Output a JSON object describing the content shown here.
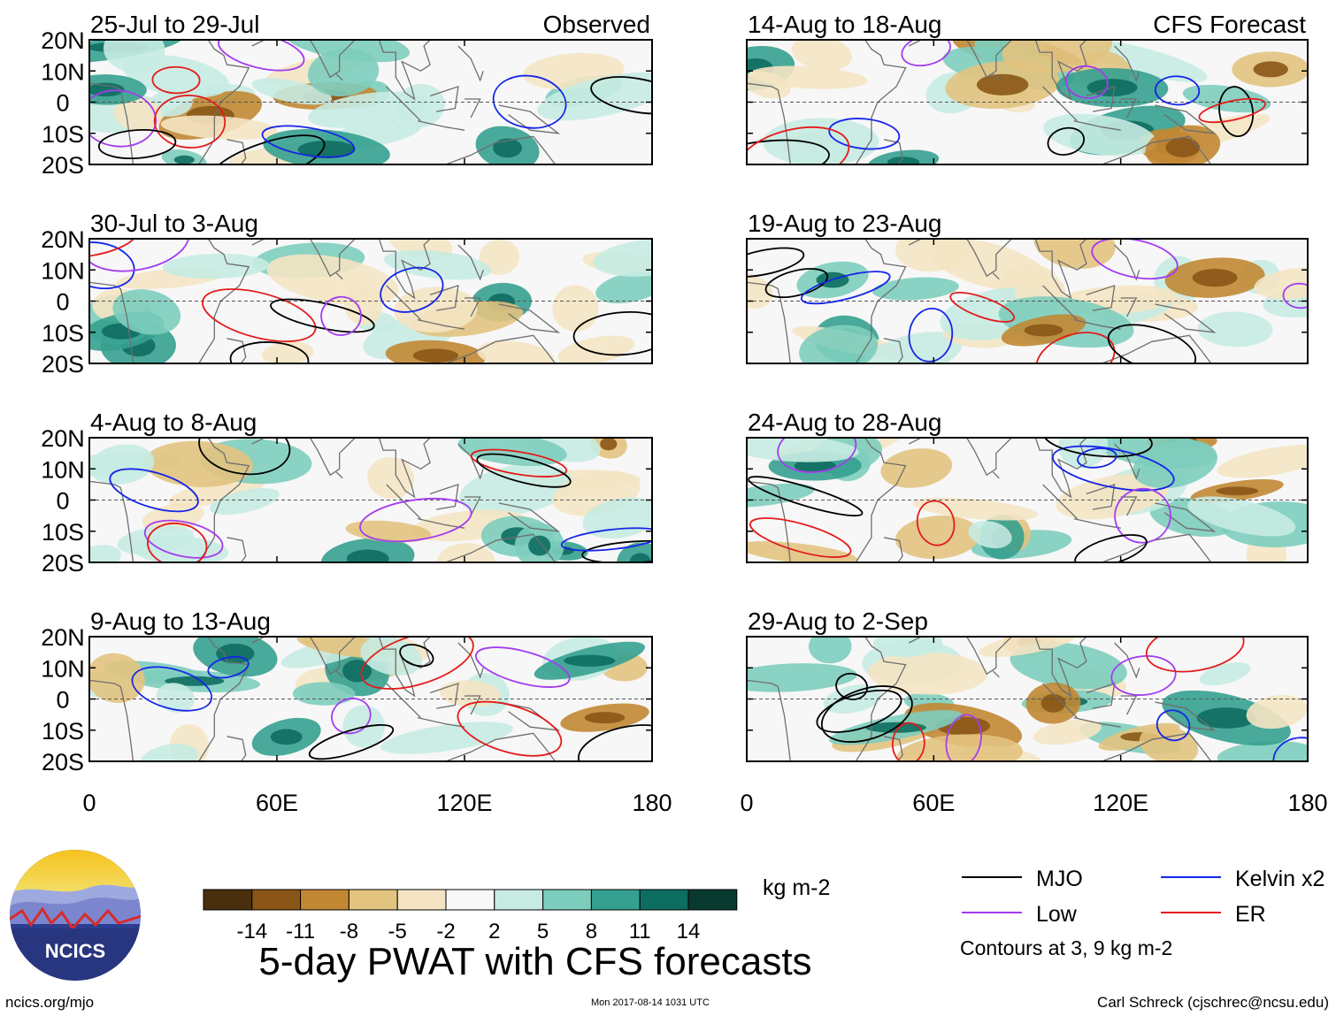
{
  "chart_data": {
    "type": "heatmap",
    "title": "5-day PWAT with CFS forecasts",
    "panel_groups": {
      "observed_label": "Observed",
      "forecast_label": "CFS Forecast"
    },
    "x_axis": {
      "range": [
        0,
        180
      ],
      "ticks": [
        0,
        60,
        120,
        180
      ],
      "tick_labels": [
        "0",
        "60E",
        "120E",
        "180"
      ]
    },
    "y_axis": {
      "range": [
        -20,
        20
      ],
      "ticks": [
        20,
        10,
        0,
        -10,
        -20
      ],
      "tick_labels": [
        "20N",
        "10N",
        "0",
        "10S",
        "20S"
      ]
    },
    "panels": [
      {
        "group": "Observed",
        "period": "25-Jul to 29-Jul"
      },
      {
        "group": "Observed",
        "period": "30-Jul to 3-Aug"
      },
      {
        "group": "Observed",
        "period": "4-Aug to 8-Aug"
      },
      {
        "group": "Observed",
        "period": "9-Aug to 13-Aug"
      },
      {
        "group": "CFS Forecast",
        "period": "14-Aug to 18-Aug"
      },
      {
        "group": "CFS Forecast",
        "period": "19-Aug to 23-Aug"
      },
      {
        "group": "CFS Forecast",
        "period": "24-Aug to 28-Aug"
      },
      {
        "group": "CFS Forecast",
        "period": "29-Aug to 2-Sep"
      }
    ],
    "colorbar": {
      "units": "kg m-2",
      "levels": [
        "-14",
        "-11",
        "-8",
        "-5",
        "-2",
        "2",
        "5",
        "8",
        "11",
        "14"
      ],
      "colors": [
        "#4a2f0f",
        "#8a5617",
        "#c18733",
        "#e2c380",
        "#f4e4c3",
        "#f8f8f8",
        "#c7ebe2",
        "#7dcdbd",
        "#35a08f",
        "#0e6d61",
        "#08392f"
      ]
    },
    "legend": {
      "entries": [
        {
          "name": "MJO",
          "color": "#000000"
        },
        {
          "name": "Kelvin x2",
          "color": "#1525e8"
        },
        {
          "name": "Low",
          "color": "#a43cf0"
        },
        {
          "name": "ER",
          "color": "#e31b1b"
        }
      ],
      "note": "Contours at 3, 9 kg m-2"
    }
  },
  "footer": {
    "website": "ncics.org/mjo",
    "timestamp": "Mon 2017-08-14 1031 UTC",
    "credit": "Carl Schreck (cjschrec@ncsu.edu)",
    "logo_text": "NCICS"
  }
}
